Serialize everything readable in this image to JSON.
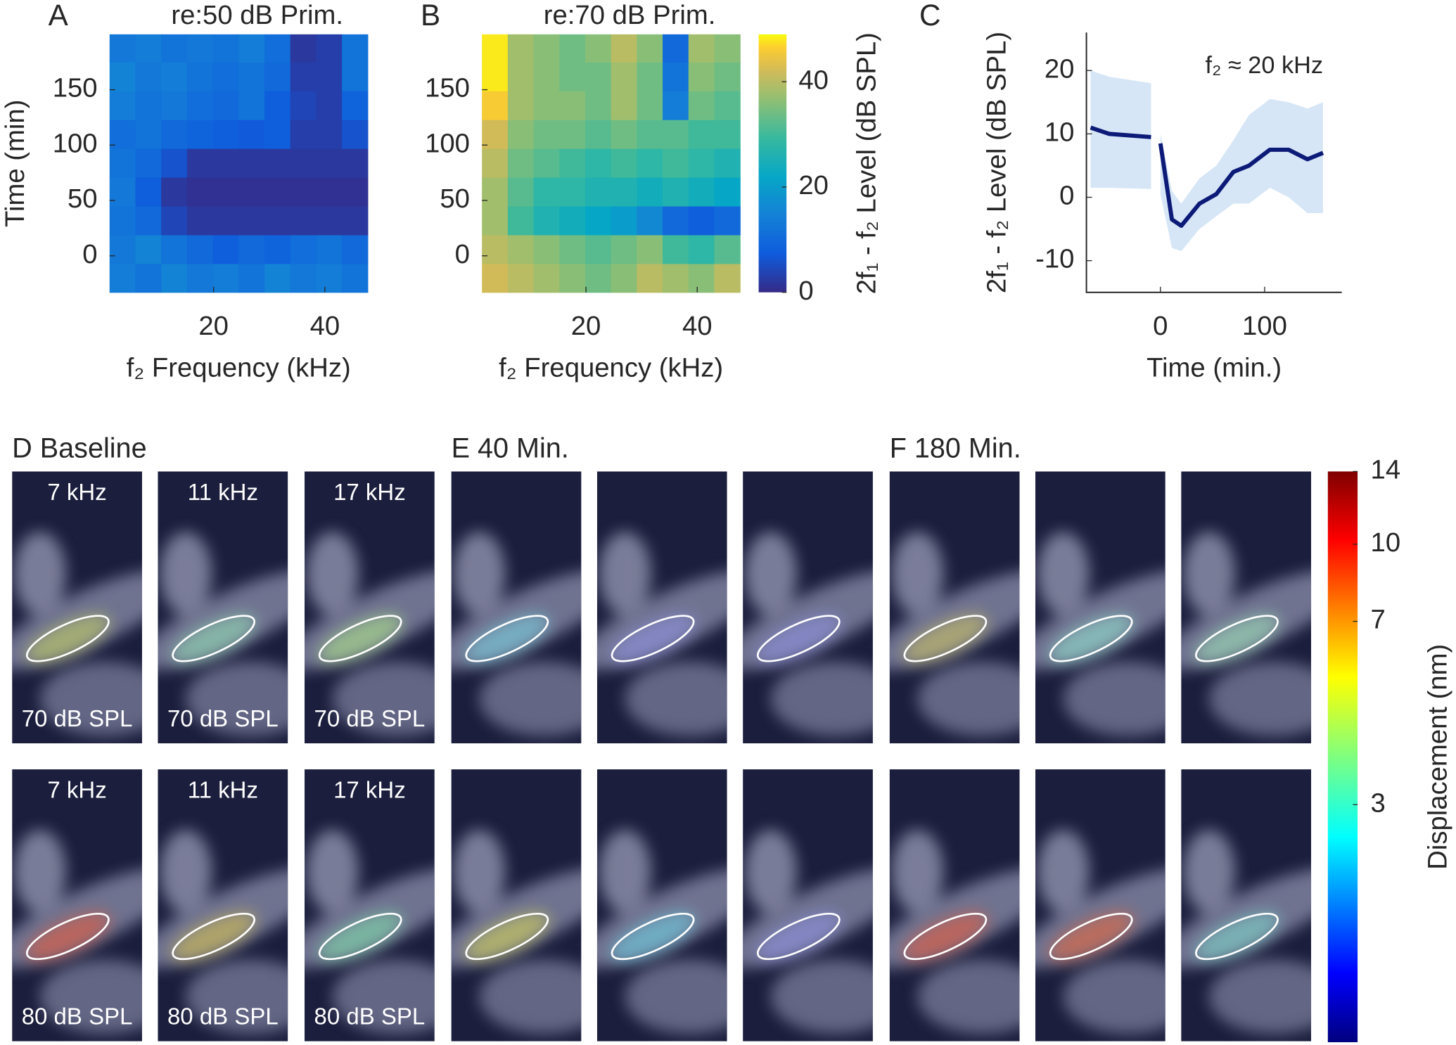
{
  "chart_data": [
    {
      "type": "heatmap",
      "panel_label": "A",
      "title": "re:50 dB Prim.",
      "xlabel": "f₂ Frequency (kHz)",
      "ylabel": "Time (min)",
      "xbins": [
        1.3,
        5.94,
        10.58,
        15.22,
        19.86,
        24.5,
        29.14,
        33.78,
        38.42,
        43.06,
        47.7
      ],
      "ybins": [
        -33,
        -7,
        19,
        45,
        71,
        97,
        123,
        149,
        175,
        200
      ],
      "z": [
        [
          14,
          12,
          15,
          13,
          14,
          12,
          15,
          13,
          14,
          12
        ],
        [
          13,
          15,
          12,
          10,
          8,
          10,
          9,
          11,
          12,
          10
        ],
        [
          12,
          10,
          4,
          2,
          2,
          2,
          2,
          2,
          2,
          2
        ],
        [
          13,
          8,
          2,
          1,
          1,
          1,
          1,
          1,
          1,
          1
        ],
        [
          12,
          10,
          6,
          2,
          2,
          2,
          2,
          2,
          2,
          2
        ],
        [
          11,
          12,
          10,
          9,
          8,
          7,
          8,
          3,
          3,
          6
        ],
        [
          14,
          12,
          13,
          11,
          10,
          12,
          8,
          4,
          3,
          9
        ],
        [
          15,
          13,
          14,
          12,
          11,
          12,
          10,
          3,
          3,
          12
        ],
        [
          13,
          14,
          12,
          13,
          12,
          14,
          11,
          2,
          3,
          12
        ]
      ],
      "xlim": [
        1.3,
        47.7
      ],
      "ylim": [
        -33,
        200
      ],
      "xticks": [
        20,
        40
      ],
      "yticks": [
        0,
        50,
        100,
        150
      ],
      "zlim": [
        0,
        49
      ]
    },
    {
      "type": "heatmap",
      "panel_label": "B",
      "title": "re:70 dB Prim.",
      "xlabel": "f₂ Frequency (kHz)",
      "xbins": [
        1.3,
        5.94,
        10.58,
        15.22,
        19.86,
        24.5,
        29.14,
        33.78,
        38.42,
        43.06,
        47.7
      ],
      "ybins": [
        -33,
        -7,
        19,
        45,
        71,
        97,
        123,
        149,
        175,
        200
      ],
      "z": [
        [
          42,
          40,
          38,
          36,
          34,
          36,
          40,
          38,
          36,
          40
        ],
        [
          40,
          38,
          36,
          34,
          32,
          34,
          36,
          30,
          28,
          32
        ],
        [
          38,
          30,
          26,
          24,
          22,
          20,
          16,
          10,
          8,
          10
        ],
        [
          38,
          32,
          28,
          28,
          26,
          26,
          24,
          26,
          24,
          22
        ],
        [
          40,
          34,
          32,
          30,
          28,
          30,
          28,
          30,
          28,
          26
        ],
        [
          42,
          36,
          34,
          34,
          32,
          34,
          32,
          32,
          30,
          30
        ],
        [
          46,
          38,
          36,
          36,
          34,
          38,
          34,
          14,
          34,
          32
        ],
        [
          48,
          38,
          36,
          34,
          34,
          38,
          34,
          12,
          36,
          34
        ],
        [
          48,
          38,
          36,
          34,
          36,
          40,
          36,
          10,
          38,
          36
        ]
      ],
      "xlim": [
        1.3,
        47.7
      ],
      "ylim": [
        -33,
        200
      ],
      "xticks": [
        20,
        40
      ],
      "yticks": [
        0,
        50,
        100,
        150
      ],
      "zlim": [
        0,
        49
      ],
      "colorbar": {
        "label": "2f₁ - f₂ Level (dB SPL)",
        "ticks": [
          0,
          20,
          40
        ]
      }
    },
    {
      "type": "line",
      "panel_label": "C",
      "annotation": "f₂ ≈ 20 kHz",
      "xlabel": "Time (min.)",
      "ylabel": "2f₁ - f₂ Level (dB SPL)",
      "x": [
        -67,
        -49,
        -9,
        -4,
        0,
        11,
        20,
        37.5,
        53.6,
        70,
        85,
        105,
        123,
        141,
        156
      ],
      "values": [
        11,
        10,
        9.5,
        null,
        8.5,
        -3.5,
        -4.5,
        -1,
        0.5,
        4,
        5,
        7.5,
        7.5,
        6,
        7
      ],
      "upper": [
        20,
        19,
        18,
        null,
        10,
        1,
        -1,
        3,
        5,
        9,
        13,
        15.5,
        15,
        14,
        15
      ],
      "lower": [
        1.5,
        1.5,
        1.3,
        null,
        0.5,
        -8,
        -8.5,
        -5,
        -3,
        -1,
        -1,
        1.5,
        0,
        -2.5,
        -2.5
      ],
      "color": "#0c1a78",
      "band_color": "#d6e6f6",
      "xlim": [
        -71,
        174
      ],
      "ylim": [
        -15,
        26
      ],
      "xticks": [
        0,
        100
      ],
      "yticks": [
        -10,
        0,
        10,
        20
      ]
    }
  ],
  "image_panels": {
    "groups": [
      "D Baseline",
      "E 40 Min.",
      "F 180 Min."
    ],
    "rows": [
      {
        "frequencies": [
          "7 kHz",
          "11 kHz",
          "17 kHz"
        ],
        "levels": [
          "70 dB SPL",
          "70 dB SPL",
          "70 dB SPL"
        ]
      },
      {
        "frequencies": [
          "7 kHz",
          "11 kHz",
          "17 kHz"
        ],
        "levels": [
          "80 dB SPL",
          "80 dB SPL",
          "80 dB SPL"
        ]
      }
    ],
    "colorbar": {
      "label": "Displacement (nm)",
      "ylim": [
        1,
        14
      ],
      "yticks": [
        3,
        7,
        10,
        14
      ],
      "log": true
    }
  }
}
